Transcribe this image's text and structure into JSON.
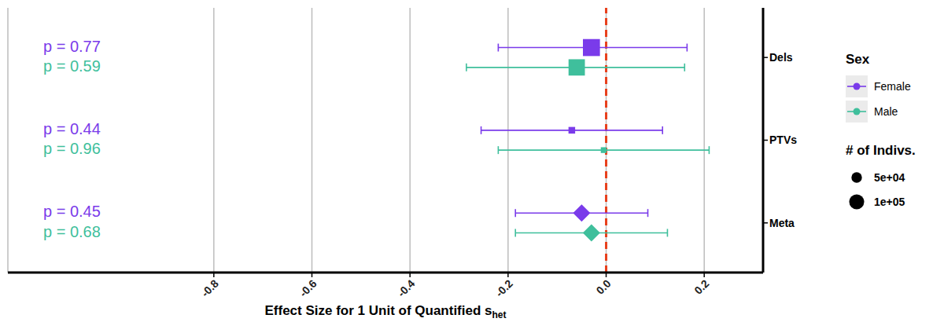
{
  "chart_data": {
    "type": "forest",
    "xlabel": {
      "text": "Effect Size for 1 Unit of Quantified s",
      "subscript": "het"
    },
    "categories": [
      "Dels",
      "PTVs",
      "Meta"
    ],
    "series": [
      {
        "name": "Female",
        "color": "#7a3bea",
        "values": [
          -0.03,
          -0.07,
          -0.05
        ],
        "ci_low": [
          -0.22,
          -0.255,
          -0.185
        ],
        "ci_high": [
          0.165,
          0.115,
          0.085
        ],
        "n": [
          130000,
          20000,
          null
        ],
        "p_labels": [
          "p = 0.77",
          "p = 0.44",
          "p = 0.45"
        ]
      },
      {
        "name": "Male",
        "color": "#3fbf9c",
        "values": [
          -0.06,
          -0.005,
          -0.03
        ],
        "ci_low": [
          -0.285,
          -0.22,
          -0.185
        ],
        "ci_high": [
          0.16,
          0.21,
          0.125
        ],
        "n": [
          120000,
          15000,
          null
        ],
        "p_labels": [
          "p = 0.59",
          "p = 0.96",
          "p = 0.68"
        ]
      }
    ],
    "xlim": [
      -1.22,
      0.32
    ],
    "xticks": [
      -0.8,
      -0.6,
      -0.4,
      -0.2,
      {
        "value": 0,
        "label": "0.0"
      },
      0.2
    ],
    "grid": true,
    "reference_x": 0,
    "legend": "right",
    "legend_title": "Sex",
    "size_legend": {
      "title": "# of Indivs.",
      "values": [
        {
          "value": 50000,
          "label": "5e+04"
        },
        {
          "value": 100000,
          "label": "1e+05"
        }
      ]
    }
  }
}
